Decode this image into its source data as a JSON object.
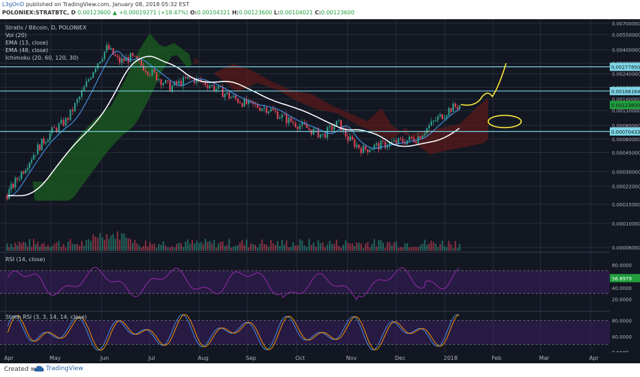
{
  "header": {
    "author": "L3gOnD",
    "publish_text": "published on TradingView.com, January 08, 2018 05:32 EST",
    "symbol": "POLONIEX:STRATBTC, D",
    "last": "0.00123600",
    "change": "+0.00019271 (+18.47%)",
    "open_label": "O:",
    "open": "0.00104321",
    "high_label": "H:",
    "high": "0.00123600",
    "low_label": "L:",
    "low": "0.00104021",
    "close_label": "C:",
    "close": "0.00123600"
  },
  "legend": {
    "title": "Stratis / Bitcoin, D, POLONIEX",
    "vol": "Vol (20)",
    "ema13": "EMA (13, close)",
    "ema48": "EMA (48, close)",
    "ichimoku": "Ichimoku (20, 60, 120, 30)",
    "rsi": "RSI (14, close)",
    "stoch": "Stoch RSI (3, 3, 14, 14, close)"
  },
  "footer": {
    "created": "Created with",
    "brand": "TradingView"
  },
  "colors": {
    "background": "#131722",
    "grid": "#2a2e39",
    "up": "#2e9e89",
    "down": "#e0445a",
    "ema13": "#3f8fe0",
    "ema48": "#ffffff",
    "horizontal_lines": "#7fd7e6",
    "annotation": "#ffeb3b",
    "rsi_line": "#9c27b0",
    "stoch_k": "#4a90e2",
    "stoch_d": "#ff9800",
    "cloud_bull": "#1b5e20",
    "cloud_bear": "#5c1a1a"
  },
  "chart_data": {
    "type": "candlestick",
    "symbol": "POLONIEX:STRATBTC",
    "timeframe": "D",
    "x_tick_labels": [
      "Apr",
      "May",
      "Jun",
      "Jul",
      "Aug",
      "Sep",
      "Oct",
      "Nov",
      "Dec",
      "2018",
      "Feb",
      "Mar",
      "Apr"
    ],
    "price_tick_labels": [
      "0.00700000",
      "0.00550000",
      "0.00400000",
      "0.00300000",
      "0.00240000",
      "0.00180000",
      "0.00140000",
      "0.00110000",
      "0.00080000",
      "0.00060000",
      "0.00045000",
      "0.00030000",
      "0.00022000",
      "0.00015000",
      "0.00010000",
      "0.00006000"
    ],
    "price_labels": [
      {
        "value": "0.00277850",
        "color": "#7fd7e6"
      },
      {
        "value": "0.00166164",
        "color": "#7fd7e6"
      },
      {
        "value": "0.00123600",
        "color": "#1f9e3b"
      },
      {
        "value": "0.00070433",
        "color": "#7fd7e6"
      }
    ],
    "horizontal_levels": [
      0.0027785,
      0.00166164,
      0.0007043
    ],
    "price_series_approx": [
      {
        "month": "Apr",
        "price": 0.00018
      },
      {
        "month": "May",
        "price": 0.0007
      },
      {
        "month": "Jun",
        "price": 0.0035
      },
      {
        "month": "Jul",
        "price": 0.0026
      },
      {
        "month": "Aug",
        "price": 0.0021
      },
      {
        "month": "Sep",
        "price": 0.0012
      },
      {
        "month": "Oct",
        "price": 0.00085
      },
      {
        "month": "Nov",
        "price": 0.0005
      },
      {
        "month": "Dec",
        "price": 0.00058
      },
      {
        "month": "2018",
        "price": 0.001236
      }
    ],
    "rsi": {
      "tick_labels": [
        "80.0000",
        "60.0000",
        "40.0000",
        "20.0000"
      ],
      "current": "56.8979",
      "upper": 70,
      "lower": 30
    },
    "stoch_rsi": {
      "tick_labels": [
        "80.0000",
        "40.0000",
        "0.0000"
      ],
      "upper": 80,
      "lower": 20
    }
  }
}
